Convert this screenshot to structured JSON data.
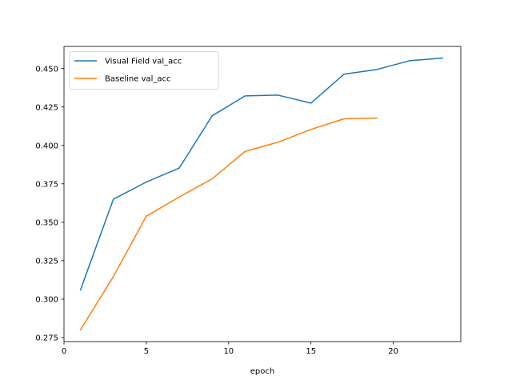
{
  "chart_data": {
    "type": "line",
    "title": "",
    "xlabel": "epoch",
    "ylabel": "",
    "xlim": [
      0,
      24.1
    ],
    "ylim": [
      0.2724,
      0.4644
    ],
    "xticks": [
      0,
      5,
      10,
      15,
      20
    ],
    "xtick_labels": [
      "0",
      "5",
      "10",
      "15",
      "20"
    ],
    "yticks": [
      0.275,
      0.3,
      0.325,
      0.35,
      0.375,
      0.4,
      0.425,
      0.45
    ],
    "ytick_labels": [
      "0.275",
      "0.300",
      "0.325",
      "0.350",
      "0.375",
      "0.400",
      "0.425",
      "0.450"
    ],
    "grid": false,
    "legend_position": "top-left",
    "series": [
      {
        "name": "Visual Field val_acc",
        "color": "#1f77b4",
        "x": [
          1,
          3,
          5,
          7,
          9,
          11,
          13,
          15,
          17,
          19,
          21,
          23
        ],
        "y": [
          0.306,
          0.365,
          0.3762,
          0.3853,
          0.4193,
          0.4322,
          0.4327,
          0.4275,
          0.4463,
          0.4494,
          0.4551,
          0.4568
        ]
      },
      {
        "name": "Baseline val_acc",
        "color": "#ff7f0e",
        "x": [
          1,
          3,
          5,
          7,
          9,
          11,
          13,
          15,
          17,
          19
        ],
        "y": [
          0.28,
          0.3147,
          0.354,
          0.3664,
          0.3783,
          0.3961,
          0.4021,
          0.4104,
          0.4173,
          0.4178
        ]
      }
    ]
  }
}
